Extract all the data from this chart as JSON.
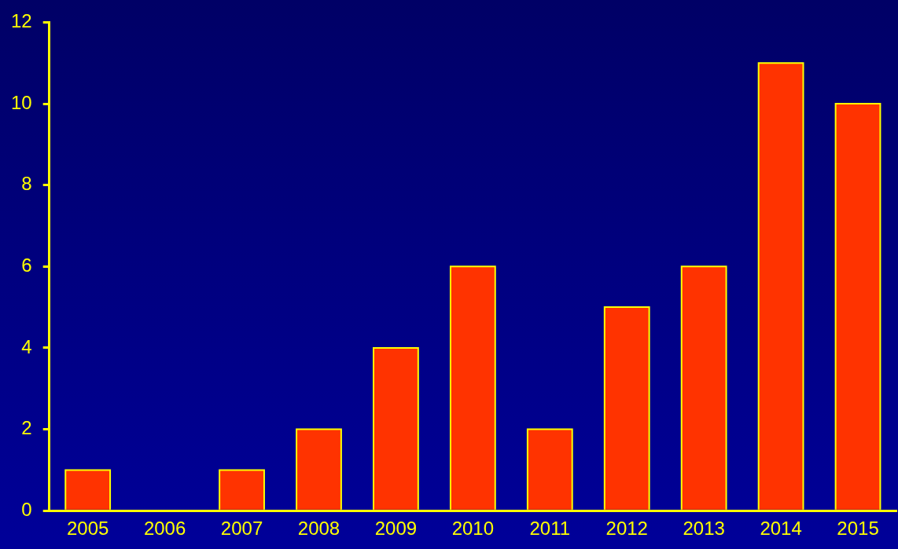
{
  "chart_data": {
    "type": "bar",
    "categories": [
      "2005",
      "2006",
      "2007",
      "2008",
      "2009",
      "2010",
      "2011",
      "2012",
      "2013",
      "2014",
      "2015"
    ],
    "values": [
      1,
      0,
      1,
      2,
      4,
      6,
      2,
      5,
      6,
      11,
      10
    ],
    "color": "#ff3300",
    "ylim": [
      0,
      12
    ],
    "yticks": [
      0,
      2,
      4,
      6,
      8,
      10,
      12
    ],
    "grid": false,
    "legend": false
  }
}
